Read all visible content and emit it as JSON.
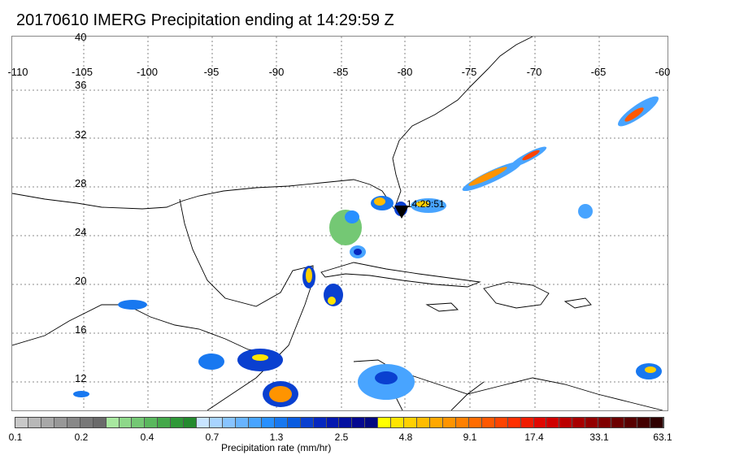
{
  "title": "20170610 IMERG Precipitation ending at 14:29:59 Z",
  "map": {
    "lon_ticks": [
      "-110",
      "-105",
      "-100",
      "-95",
      "-90",
      "-85",
      "-80",
      "-75",
      "-70",
      "-65",
      "-60"
    ],
    "lat_ticks": [
      "40",
      "36",
      "32",
      "28",
      "24",
      "20",
      "16",
      "12"
    ],
    "marker_label": "14:29:51"
  },
  "colorbar": {
    "label": "Precipitation rate (mm/hr)",
    "ticks": [
      "0.1",
      "0.2",
      "0.4",
      "0.7",
      "1.3",
      "2.5",
      "4.8",
      "9.1",
      "17.4",
      "33.1",
      "63.1"
    ],
    "colors": [
      "#c8c8c8",
      "#b8b8b8",
      "#a8a8a8",
      "#989898",
      "#888888",
      "#787878",
      "#6a6a6a",
      "#a8e8a0",
      "#8ed88a",
      "#74c874",
      "#5ab85e",
      "#44a84a",
      "#2f9838",
      "#248a2e",
      "#c8e4ff",
      "#a8d4ff",
      "#88c4ff",
      "#68b4ff",
      "#48a4ff",
      "#2890ff",
      "#1878f0",
      "#0a5ce0",
      "#0a40d0",
      "#0628c0",
      "#0418b0",
      "#0410a0",
      "#040890",
      "#020880",
      "#ffff00",
      "#ffe400",
      "#ffd000",
      "#ffbc00",
      "#ffa800",
      "#ff9400",
      "#ff8000",
      "#ff6c00",
      "#ff5800",
      "#ff4400",
      "#ff3000",
      "#f01c00",
      "#e00800",
      "#d00000",
      "#bc0000",
      "#a80000",
      "#940000",
      "#800000",
      "#6c0000",
      "#580000",
      "#440000",
      "#300000"
    ]
  }
}
